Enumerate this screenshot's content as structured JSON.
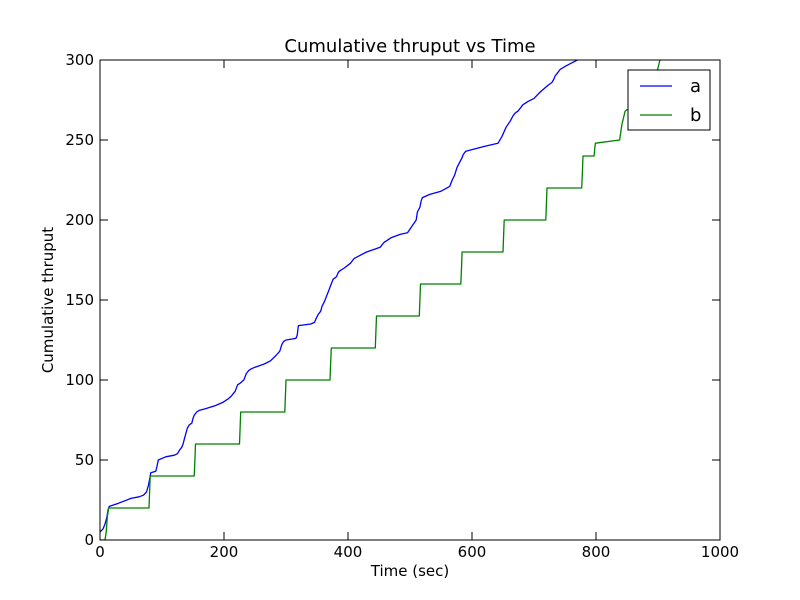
{
  "chart_data": {
    "type": "line",
    "title": "Cumulative thruput vs Time",
    "xlabel": "Time (sec)",
    "ylabel": "Cumulative thruput",
    "xlim": [
      0,
      1000
    ],
    "ylim": [
      0,
      300
    ],
    "xticks": [
      0,
      200,
      400,
      600,
      800,
      1000
    ],
    "yticks": [
      0,
      50,
      100,
      150,
      200,
      250,
      300
    ],
    "xtick_labels": [
      "0",
      "200",
      "400",
      "600",
      "800",
      "1000"
    ],
    "ytick_labels": [
      "0",
      "50",
      "100",
      "150",
      "200",
      "250",
      "300"
    ],
    "grid": false,
    "legend": "top-right",
    "series": [
      {
        "name": "a",
        "color": "#0000ff",
        "x": [
          0,
          5,
          8,
          11,
          13,
          15,
          30,
          50,
          63,
          70,
          75,
          78,
          80,
          82,
          90,
          92,
          94,
          106,
          120,
          125,
          128,
          132,
          134,
          136,
          138,
          141,
          144,
          148,
          150,
          152,
          154,
          156,
          160,
          170,
          186,
          198,
          206,
          212,
          218,
          222,
          226,
          232,
          236,
          240,
          244,
          250,
          265,
          275,
          283,
          290,
          293,
          296,
          300,
          316,
          318,
          320,
          340,
          346,
          348,
          352,
          356,
          358,
          362,
          364,
          366,
          368,
          370,
          372,
          376,
          380,
          382,
          384,
          386,
          394,
          404,
          410,
          430,
          452,
          458,
          470,
          484,
          496,
          510,
          512,
          516,
          518,
          520,
          532,
          550,
          564,
          568,
          572,
          576,
          580,
          584,
          586,
          590,
          600,
          620,
          642,
          648,
          655,
          662,
          666,
          670,
          674,
          678,
          682,
          690,
          700,
          710,
          722,
          729,
          732,
          734,
          738,
          742,
          746,
          750,
          760,
          770,
          776,
          782,
          790
        ],
        "y": [
          5,
          7,
          10,
          14,
          19,
          21,
          23,
          26,
          27,
          28,
          30,
          34,
          38,
          42,
          43,
          46,
          50,
          52,
          53,
          54,
          56,
          58,
          60,
          63,
          66,
          70,
          72,
          73,
          76,
          78,
          79,
          80,
          81,
          82,
          84,
          86,
          88,
          90,
          93,
          97,
          98,
          100,
          104,
          106,
          107,
          108,
          110,
          112,
          115,
          118,
          122,
          124,
          125,
          126,
          128,
          134,
          135,
          136,
          138,
          141,
          143,
          146,
          149,
          151,
          153,
          155,
          157,
          159,
          163,
          164,
          165,
          167,
          168,
          170,
          173,
          176,
          180,
          183,
          186,
          189,
          191,
          192,
          200,
          205,
          208,
          212,
          214,
          216,
          218,
          221,
          225,
          228,
          233,
          236,
          239,
          241,
          243,
          244,
          246,
          248,
          252,
          258,
          262,
          265,
          267,
          268,
          270,
          272,
          274,
          276,
          280,
          284,
          286,
          288,
          290,
          292,
          294,
          295,
          296,
          298,
          300,
          302,
          304,
          306
        ]
      },
      {
        "name": "b",
        "color": "#008000",
        "x": [
          0,
          4,
          8,
          10,
          12,
          14,
          79,
          80,
          81,
          152,
          153,
          154,
          225,
          226,
          227,
          298,
          299,
          300,
          371,
          372,
          373,
          444,
          445,
          446,
          515,
          516,
          517,
          582,
          583,
          584,
          650,
          651,
          652,
          719,
          720,
          721,
          777,
          778,
          779,
          797,
          798,
          799,
          838,
          840,
          842,
          847,
          850,
          880,
          884,
          890,
          896,
          900,
          903
        ],
        "y": [
          0,
          0,
          0,
          5,
          15,
          20,
          20,
          30,
          40,
          40,
          50,
          60,
          60,
          70,
          80,
          80,
          90,
          100,
          100,
          110,
          120,
          120,
          130,
          140,
          140,
          150,
          160,
          160,
          170,
          180,
          180,
          190,
          200,
          200,
          210,
          220,
          220,
          230,
          240,
          240,
          245,
          248,
          250,
          255,
          260,
          268,
          269,
          270,
          275,
          280,
          290,
          295,
          300
        ]
      }
    ]
  }
}
